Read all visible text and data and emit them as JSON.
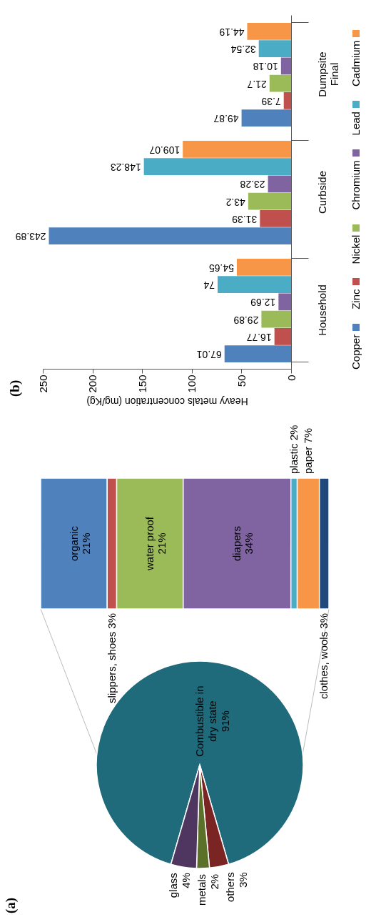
{
  "chart_data": [
    {
      "type": "pie",
      "title": "(a)",
      "categories": [
        "Combustible in dry state",
        "others",
        "metals",
        "glass"
      ],
      "values": [
        91,
        3,
        2,
        4
      ],
      "colors": [
        "#1f6b7c",
        "#7a2524",
        "#5b7029",
        "#4e3660"
      ],
      "value_labels": [
        "91%",
        "3%",
        "2%",
        "4%"
      ]
    },
    {
      "type": "bar",
      "stacked": true,
      "orientation": "horizontal",
      "tick_labels": false,
      "categories": [
        null
      ],
      "series": [
        {
          "name": "organic",
          "color": "#4f81bd",
          "values": [
            21
          ],
          "value_labels": [
            "21%"
          ]
        },
        {
          "name": "slippers, shoes",
          "color": "#c0504d",
          "values": [
            3
          ],
          "value_labels": [
            "3%"
          ]
        },
        {
          "name": "water proof",
          "color": "#9bbb59",
          "values": [
            21
          ],
          "value_labels": [
            "21%"
          ]
        },
        {
          "name": "diapers",
          "color": "#8064a2",
          "values": [
            34
          ],
          "value_labels": [
            "34%"
          ]
        },
        {
          "name": "plastic",
          "color": "#4bacc6",
          "values": [
            2
          ],
          "value_labels": [
            "2%"
          ]
        },
        {
          "name": "paper",
          "color": "#f79646",
          "values": [
            7
          ],
          "value_labels": [
            "7%"
          ]
        },
        {
          "name": "clothes, wools",
          "color": "#1f497d",
          "values": [
            3
          ],
          "value_labels": [
            "3%"
          ]
        }
      ]
    },
    {
      "type": "bar",
      "title": "(b)",
      "orientation": "horizontal",
      "xlabel": "Heavy metals concentration (mg/Kg)",
      "categories": [
        "Dumpsite Final",
        "Curbside",
        "Household"
      ],
      "xlim": [
        250,
        0
      ],
      "xticks": [
        0,
        50,
        100,
        150,
        200,
        250
      ],
      "grid": false,
      "legend": "right",
      "data_labels": true,
      "series": [
        {
          "name": "Copper",
          "color": "#4f81bd",
          "values": [
            49.87,
            243.89,
            67.01
          ]
        },
        {
          "name": "Zinc",
          "color": "#c0504d",
          "values": [
            7.39,
            31.39,
            16.77
          ]
        },
        {
          "name": "Nickel",
          "color": "#9bbb59",
          "values": [
            21.7,
            43.2,
            29.89
          ]
        },
        {
          "name": "Chromium",
          "color": "#8064a2",
          "values": [
            10.18,
            23.28,
            12.69
          ]
        },
        {
          "name": "Lead",
          "color": "#4bacc6",
          "values": [
            32.54,
            148.23,
            74
          ]
        },
        {
          "name": "Cadmium",
          "color": "#f79646",
          "values": [
            44.19,
            109.07,
            54.65
          ]
        }
      ]
    }
  ]
}
